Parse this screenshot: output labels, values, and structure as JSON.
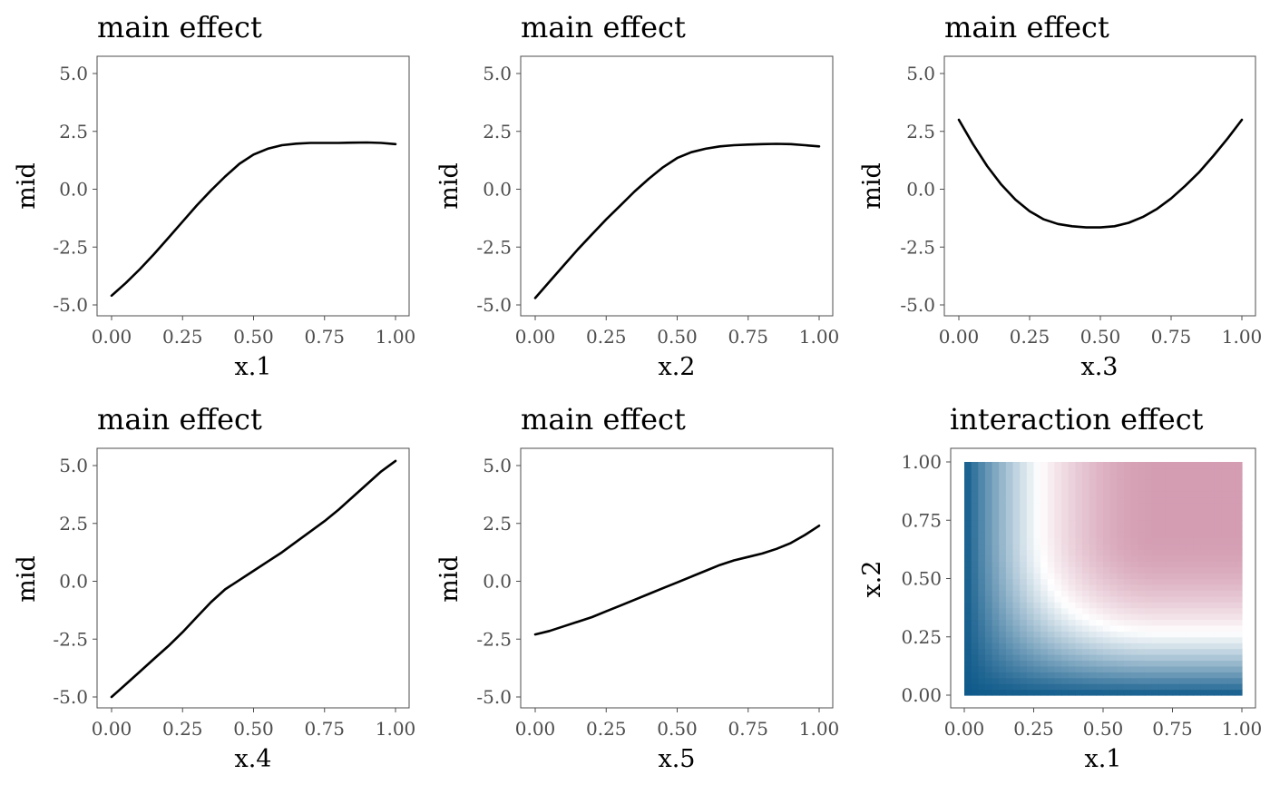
{
  "chart_data": [
    {
      "type": "line",
      "title": "main effect",
      "xlabel": "x.1",
      "ylabel": "mid",
      "xlim": [
        0,
        1
      ],
      "ylim": [
        -5.5,
        5.7
      ],
      "xticks": [
        0,
        0.25,
        0.5,
        0.75,
        1
      ],
      "xtick_labels": [
        "0.00",
        "0.25",
        "0.50",
        "0.75",
        "1.00"
      ],
      "yticks": [
        -5,
        -2.5,
        0,
        2.5,
        5
      ],
      "ytick_labels": [
        "-5.0",
        "-2.5",
        "0.0",
        "2.5",
        "5.0"
      ],
      "grid": false,
      "x": [
        0.0,
        0.05,
        0.1,
        0.15,
        0.2,
        0.25,
        0.3,
        0.35,
        0.4,
        0.45,
        0.5,
        0.55,
        0.6,
        0.65,
        0.7,
        0.75,
        0.8,
        0.85,
        0.9,
        0.95,
        1.0
      ],
      "y": [
        -4.6,
        -4.05,
        -3.45,
        -2.8,
        -2.1,
        -1.4,
        -0.7,
        -0.05,
        0.55,
        1.1,
        1.5,
        1.75,
        1.9,
        1.97,
        2.0,
        2.0,
        2.0,
        2.01,
        2.02,
        2.0,
        1.95
      ]
    },
    {
      "type": "line",
      "title": "main effect",
      "xlabel": "x.2",
      "ylabel": "mid",
      "xlim": [
        0,
        1
      ],
      "ylim": [
        -5.5,
        5.7
      ],
      "xticks": [
        0,
        0.25,
        0.5,
        0.75,
        1
      ],
      "xtick_labels": [
        "0.00",
        "0.25",
        "0.50",
        "0.75",
        "1.00"
      ],
      "yticks": [
        -5,
        -2.5,
        0,
        2.5,
        5
      ],
      "ytick_labels": [
        "-5.0",
        "-2.5",
        "0.0",
        "2.5",
        "5.0"
      ],
      "grid": false,
      "x": [
        0.0,
        0.05,
        0.1,
        0.15,
        0.2,
        0.25,
        0.3,
        0.35,
        0.4,
        0.45,
        0.5,
        0.55,
        0.6,
        0.65,
        0.7,
        0.75,
        0.8,
        0.85,
        0.9,
        0.95,
        1.0
      ],
      "y": [
        -4.7,
        -4.0,
        -3.3,
        -2.6,
        -1.95,
        -1.3,
        -0.7,
        -0.1,
        0.45,
        0.95,
        1.35,
        1.6,
        1.75,
        1.85,
        1.9,
        1.93,
        1.95,
        1.96,
        1.95,
        1.9,
        1.85
      ]
    },
    {
      "type": "line",
      "title": "main effect",
      "xlabel": "x.3",
      "ylabel": "mid",
      "xlim": [
        0,
        1
      ],
      "ylim": [
        -5.5,
        5.7
      ],
      "xticks": [
        0,
        0.25,
        0.5,
        0.75,
        1
      ],
      "xtick_labels": [
        "0.00",
        "0.25",
        "0.50",
        "0.75",
        "1.00"
      ],
      "yticks": [
        -5,
        -2.5,
        0,
        2.5,
        5
      ],
      "ytick_labels": [
        "-5.0",
        "-2.5",
        "0.0",
        "2.5",
        "5.0"
      ],
      "grid": false,
      "x": [
        0.0,
        0.05,
        0.1,
        0.15,
        0.2,
        0.25,
        0.3,
        0.35,
        0.4,
        0.45,
        0.5,
        0.55,
        0.6,
        0.65,
        0.7,
        0.75,
        0.8,
        0.85,
        0.9,
        0.95,
        1.0
      ],
      "y": [
        3.0,
        1.95,
        1.0,
        0.2,
        -0.45,
        -0.95,
        -1.3,
        -1.5,
        -1.6,
        -1.65,
        -1.65,
        -1.6,
        -1.45,
        -1.2,
        -0.85,
        -0.4,
        0.15,
        0.75,
        1.45,
        2.2,
        3.0
      ]
    },
    {
      "type": "line",
      "title": "main effect",
      "xlabel": "x.4",
      "ylabel": "mid",
      "xlim": [
        0,
        1
      ],
      "ylim": [
        -5.5,
        5.7
      ],
      "xticks": [
        0,
        0.25,
        0.5,
        0.75,
        1
      ],
      "xtick_labels": [
        "0.00",
        "0.25",
        "0.50",
        "0.75",
        "1.00"
      ],
      "yticks": [
        -5,
        -2.5,
        0,
        2.5,
        5
      ],
      "ytick_labels": [
        "-5.0",
        "-2.5",
        "0.0",
        "2.5",
        "5.0"
      ],
      "grid": false,
      "x": [
        0.0,
        0.05,
        0.1,
        0.15,
        0.2,
        0.25,
        0.3,
        0.35,
        0.4,
        0.45,
        0.5,
        0.55,
        0.6,
        0.65,
        0.7,
        0.75,
        0.8,
        0.85,
        0.9,
        0.95,
        1.0
      ],
      "y": [
        -5.0,
        -4.45,
        -3.9,
        -3.35,
        -2.8,
        -2.2,
        -1.55,
        -0.9,
        -0.35,
        0.05,
        0.45,
        0.85,
        1.25,
        1.7,
        2.15,
        2.6,
        3.1,
        3.65,
        4.2,
        4.75,
        5.2
      ]
    },
    {
      "type": "line",
      "title": "main effect",
      "xlabel": "x.5",
      "ylabel": "mid",
      "xlim": [
        0,
        1
      ],
      "ylim": [
        -5.5,
        5.7
      ],
      "xticks": [
        0,
        0.25,
        0.5,
        0.75,
        1
      ],
      "xtick_labels": [
        "0.00",
        "0.25",
        "0.50",
        "0.75",
        "1.00"
      ],
      "yticks": [
        -5,
        -2.5,
        0,
        2.5,
        5
      ],
      "ytick_labels": [
        "-5.0",
        "-2.5",
        "0.0",
        "2.5",
        "5.0"
      ],
      "grid": false,
      "x": [
        0.0,
        0.05,
        0.1,
        0.15,
        0.2,
        0.25,
        0.3,
        0.35,
        0.4,
        0.45,
        0.5,
        0.55,
        0.6,
        0.65,
        0.7,
        0.75,
        0.8,
        0.85,
        0.9,
        0.95,
        1.0
      ],
      "y": [
        -2.3,
        -2.15,
        -1.95,
        -1.75,
        -1.55,
        -1.3,
        -1.05,
        -0.8,
        -0.55,
        -0.3,
        -0.05,
        0.2,
        0.45,
        0.7,
        0.9,
        1.05,
        1.2,
        1.4,
        1.65,
        2.0,
        2.4
      ]
    },
    {
      "type": "heatmap",
      "title": "interaction effect",
      "xlabel": "x.1",
      "ylabel": "x.2",
      "xlim": [
        0,
        1
      ],
      "ylim": [
        0,
        1
      ],
      "xticks": [
        0,
        0.25,
        0.5,
        0.75,
        1
      ],
      "xtick_labels": [
        "0.00",
        "0.25",
        "0.50",
        "0.75",
        "1.00"
      ],
      "yticks": [
        0,
        0.25,
        0.5,
        0.75,
        1
      ],
      "ytick_labels": [
        "0.00",
        "0.25",
        "0.50",
        "0.75",
        "1.00"
      ],
      "grid": false,
      "x": [
        0,
        0.05,
        0.1,
        0.15,
        0.2,
        0.25,
        0.3,
        0.35,
        0.4,
        0.45,
        0.5,
        0.55,
        0.6,
        0.65,
        0.7,
        0.75,
        0.8,
        0.85,
        0.9,
        0.95,
        1.0
      ],
      "y": [
        0,
        0.05,
        0.1,
        0.15,
        0.2,
        0.25,
        0.3,
        0.35,
        0.4,
        0.45,
        0.5,
        0.55,
        0.6,
        0.65,
        0.7,
        0.75,
        0.8,
        0.85,
        0.9,
        0.95,
        1.0
      ],
      "z_range": [
        -1.0,
        0.6
      ],
      "z_formula": "f(u) = u >= 0.7 ? 1 : (u / 0.7) * (2 - u / 0.7); z = 1.6 * f(x.1) * f(x.2) - 1.0",
      "colors": {
        "low": "#0f5a8a",
        "mid": "#ffffff",
        "high": "#d49db2"
      }
    }
  ]
}
